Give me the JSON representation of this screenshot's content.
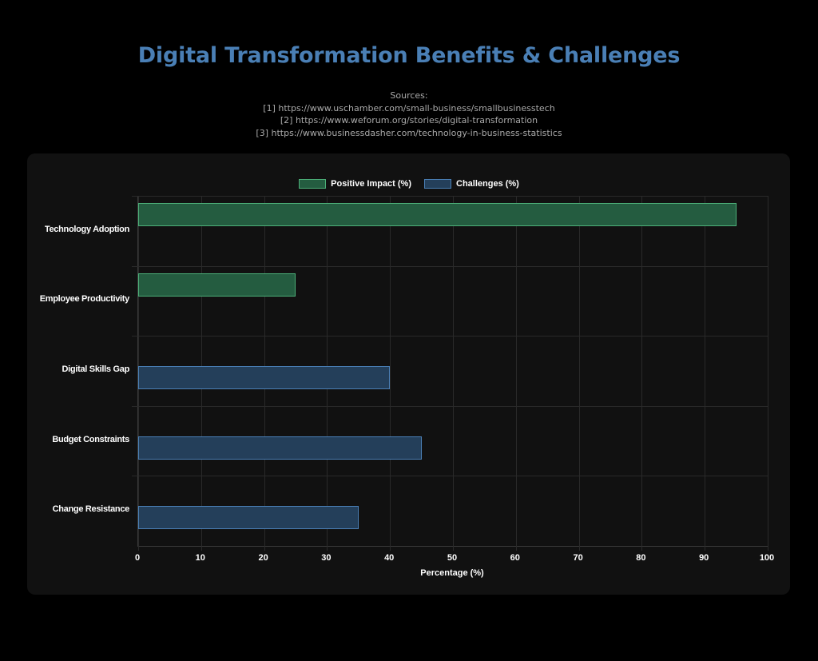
{
  "header": {
    "title": "Digital Transformation Benefits & Challenges",
    "sources_label": "Sources:",
    "sources": [
      "[1] https://www.uschamber.com/small-business/smallbusinesstech",
      "[2] https://www.weforum.org/stories/digital-transformation",
      "[3] https://www.businessdasher.com/technology-in-business-statistics"
    ]
  },
  "colors": {
    "title": "#4a7fb5",
    "positive_fill": "#245c40",
    "positive_border": "#4caf78",
    "challenge_fill": "#243f5a",
    "challenge_border": "#4a7fb5"
  },
  "chart_data": {
    "type": "bar",
    "orientation": "horizontal",
    "title": "Digital Transformation Benefits & Challenges",
    "categories": [
      "Technology Adoption",
      "Employee Productivity",
      "Digital Skills Gap",
      "Budget Constraints",
      "Change Resistance"
    ],
    "series": [
      {
        "name": "Positive Impact (%)",
        "values": [
          95,
          25,
          null,
          null,
          null
        ]
      },
      {
        "name": "Challenges (%)",
        "values": [
          null,
          null,
          40,
          45,
          35
        ]
      }
    ],
    "xlabel": "Percentage (%)",
    "ylabel": "",
    "xlim": [
      0,
      100
    ],
    "xticks": [
      "0",
      "10",
      "20",
      "30",
      "40",
      "50",
      "60",
      "70",
      "80",
      "90",
      "100"
    ],
    "grid": true,
    "legend_position": "top"
  }
}
